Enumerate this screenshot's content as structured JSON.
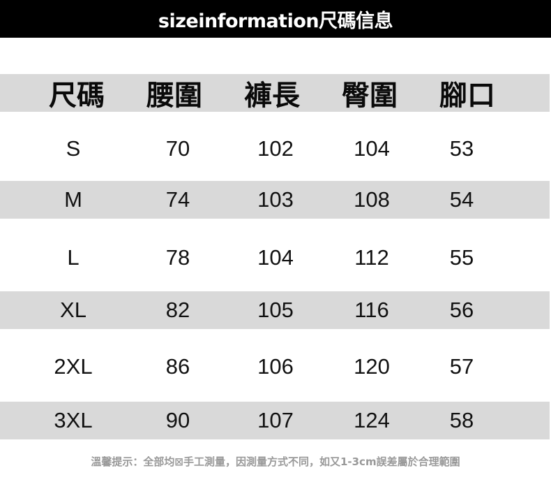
{
  "title": "sizeinformation尺碼信息",
  "table": {
    "headers": [
      "尺碼",
      "腰圍",
      "褲長",
      "臀圍",
      "腳口"
    ],
    "rows": [
      [
        "S",
        "70",
        "102",
        "104",
        "53"
      ],
      [
        "M",
        "74",
        "103",
        "108",
        "54"
      ],
      [
        "L",
        "78",
        "104",
        "112",
        "55"
      ],
      [
        "XL",
        "82",
        "105",
        "116",
        "56"
      ],
      [
        "2XL",
        "86",
        "106",
        "120",
        "57"
      ],
      [
        "3XL",
        "90",
        "107",
        "124",
        "58"
      ]
    ]
  },
  "footer_note": "溫馨提示：全部均⊠手工測量，因測量方式不同，如又1-3cm誤差屬於合理範圍",
  "colors": {
    "title_bg": "#000000",
    "band_gray": "#d9d9d9",
    "note_gray": "#999999"
  }
}
